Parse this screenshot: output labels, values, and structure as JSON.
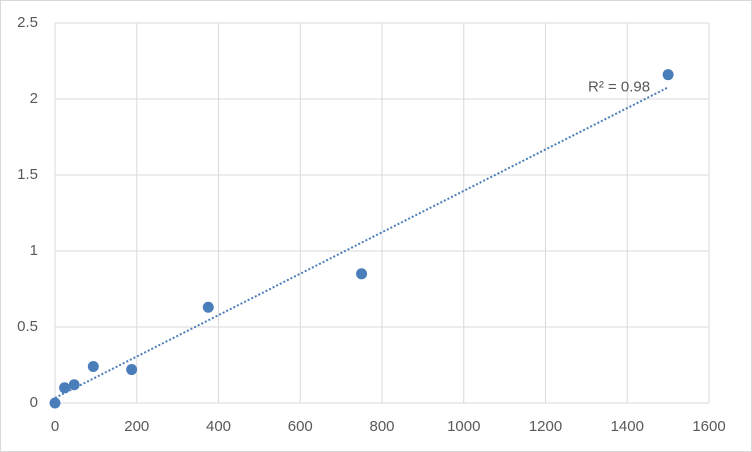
{
  "chart_data": {
    "type": "scatter",
    "x": [
      0,
      23.4,
      46.9,
      93.75,
      187.5,
      375,
      750,
      1500
    ],
    "values": [
      0,
      0.1,
      0.12,
      0.24,
      0.22,
      0.63,
      0.85,
      2.16
    ],
    "color": "#4a7ebb",
    "xlim": [
      0,
      1600
    ],
    "xticks": [
      0,
      200,
      400,
      600,
      800,
      1000,
      1200,
      1400,
      1600
    ],
    "ylim": [
      0,
      2.5
    ],
    "yticks": [
      0,
      0.5,
      1,
      1.5,
      2,
      2.5
    ],
    "grid": true,
    "trendline": "linear",
    "annotation": "R² = 0.98"
  }
}
